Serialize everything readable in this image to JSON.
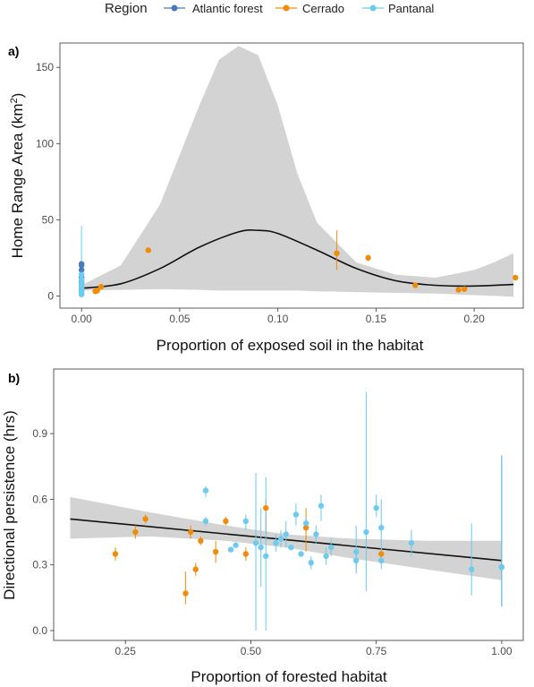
{
  "legend": {
    "title": "Region",
    "items": [
      {
        "label": "Atlantic forest",
        "color": "#4a7ab7"
      },
      {
        "label": "Cerrado",
        "color": "#f08c0a"
      },
      {
        "label": "Pantanal",
        "color": "#6ccbee"
      }
    ]
  },
  "chart_data": [
    {
      "panel": "a)",
      "type": "scatter",
      "xlabel": "Proportion of exposed soil in the habitat",
      "ylabel": "Home Range Area (km²)",
      "xlim": [
        -0.011,
        0.225
      ],
      "ylim": [
        -8,
        166
      ],
      "xticks": [
        0,
        0.05,
        0.1,
        0.15,
        0.2
      ],
      "xtick_labels": [
        "0.00",
        "0.05",
        "0.10",
        "0.15",
        "0.20"
      ],
      "yticks": [
        0,
        50,
        100,
        150
      ],
      "ytick_labels": [
        "0",
        "50",
        "100",
        "150"
      ],
      "grid": false,
      "fit_line": {
        "x": [
          0,
          0.02,
          0.04,
          0.06,
          0.08,
          0.09,
          0.1,
          0.12,
          0.14,
          0.16,
          0.18,
          0.2,
          0.22
        ],
        "y": [
          5,
          8,
          18,
          32,
          42,
          43,
          41,
          30,
          18,
          10,
          7,
          6.5,
          7.5
        ]
      },
      "ci_band": {
        "x": [
          0,
          0.02,
          0.04,
          0.06,
          0.07,
          0.08,
          0.09,
          0.1,
          0.11,
          0.12,
          0.14,
          0.16,
          0.18,
          0.2,
          0.21,
          0.22
        ],
        "upper": [
          7,
          20,
          60,
          125,
          155,
          164,
          158,
          125,
          80,
          48,
          22,
          14,
          12,
          17,
          22,
          28
        ],
        "lower": [
          3.5,
          4,
          4.5,
          4,
          3.5,
          3.5,
          3.5,
          3.5,
          3.5,
          3,
          2.5,
          2,
          1.5,
          0.5,
          0,
          -0.5
        ]
      },
      "series": [
        {
          "name": "Atlantic forest",
          "color": "#4a7ab7",
          "points": [
            {
              "x": 0,
              "y": 21
            },
            {
              "x": 0,
              "y": 20
            },
            {
              "x": 0,
              "y": 17
            },
            {
              "x": 0,
              "y": 12
            },
            {
              "x": 0,
              "y": 9
            }
          ]
        },
        {
          "name": "Cerrado",
          "color": "#f08c0a",
          "points": [
            {
              "x": 0,
              "y": 6
            },
            {
              "x": 0,
              "y": 5
            },
            {
              "x": 0,
              "y": 4
            },
            {
              "x": 0.007,
              "y": 3
            },
            {
              "x": 0.008,
              "y": 3.5
            },
            {
              "x": 0.01,
              "y": 6
            },
            {
              "x": 0.034,
              "y": 30
            },
            {
              "x": 0.13,
              "y": 28,
              "ylo": 17,
              "yhi": 43
            },
            {
              "x": 0.146,
              "y": 25,
              "ylo": 23,
              "yhi": 27
            },
            {
              "x": 0.17,
              "y": 7
            },
            {
              "x": 0.192,
              "y": 4
            },
            {
              "x": 0.195,
              "y": 4.5
            },
            {
              "x": 0.221,
              "y": 12
            }
          ]
        },
        {
          "name": "Pantanal",
          "color": "#6ccbee",
          "points": [
            {
              "x": 0,
              "y": 14,
              "ylo": 0,
              "yhi": 46
            },
            {
              "x": 0,
              "y": 11
            },
            {
              "x": 0,
              "y": 10
            },
            {
              "x": 0,
              "y": 8
            },
            {
              "x": 0,
              "y": 7
            },
            {
              "x": 0,
              "y": 6.5
            },
            {
              "x": 0,
              "y": 5.5
            },
            {
              "x": 0,
              "y": 4.5
            },
            {
              "x": 0,
              "y": 3
            },
            {
              "x": 0,
              "y": 2
            },
            {
              "x": 0,
              "y": 1
            }
          ]
        }
      ]
    },
    {
      "panel": "b)",
      "type": "scatter",
      "xlabel": "Proportion of forested habitat",
      "ylabel": "Directional persistence (hrs)",
      "xlim": [
        0.107,
        1.043
      ],
      "ylim": [
        -0.045,
        1.195
      ],
      "xticks": [
        0.25,
        0.5,
        0.75,
        1.0
      ],
      "xtick_labels": [
        "0.25",
        "0.50",
        "0.75",
        "1.00"
      ],
      "yticks": [
        0,
        0.3,
        0.6,
        0.9
      ],
      "ytick_labels": [
        "0.0",
        "0.3",
        "0.6",
        "0.9"
      ],
      "grid": false,
      "fit_line": {
        "x": [
          0.14,
          1.0
        ],
        "y": [
          0.51,
          0.32
        ]
      },
      "ci_band": {
        "x": [
          0.14,
          0.3,
          0.45,
          0.57,
          0.7,
          0.85,
          1.0
        ],
        "upper": [
          0.61,
          0.54,
          0.48,
          0.44,
          0.42,
          0.41,
          0.41
        ],
        "lower": [
          0.42,
          0.43,
          0.41,
          0.38,
          0.33,
          0.28,
          0.23
        ]
      },
      "series": [
        {
          "name": "Atlantic forest",
          "color": "#4a7ab7",
          "points": [
            {
              "x": 1.0,
              "y": 0.29,
              "ylo": 0.11,
              "yhi": 0.8
            }
          ]
        },
        {
          "name": "Cerrado",
          "color": "#f08c0a",
          "points": [
            {
              "x": 0.23,
              "y": 0.35,
              "ylo": 0.32,
              "yhi": 0.38
            },
            {
              "x": 0.27,
              "y": 0.45,
              "ylo": 0.42,
              "yhi": 0.48
            },
            {
              "x": 0.29,
              "y": 0.51,
              "ylo": 0.49,
              "yhi": 0.53
            },
            {
              "x": 0.37,
              "y": 0.17,
              "ylo": 0.12,
              "yhi": 0.27
            },
            {
              "x": 0.38,
              "y": 0.45,
              "ylo": 0.42,
              "yhi": 0.48
            },
            {
              "x": 0.39,
              "y": 0.28,
              "ylo": 0.25,
              "yhi": 0.31
            },
            {
              "x": 0.4,
              "y": 0.41,
              "ylo": 0.39,
              "yhi": 0.43
            },
            {
              "x": 0.43,
              "y": 0.36,
              "ylo": 0.31,
              "yhi": 0.41
            },
            {
              "x": 0.45,
              "y": 0.5,
              "ylo": 0.48,
              "yhi": 0.52
            },
            {
              "x": 0.49,
              "y": 0.35,
              "ylo": 0.32,
              "yhi": 0.38
            },
            {
              "x": 0.53,
              "y": 0.56,
              "ylo": 0.44,
              "yhi": 0.6
            },
            {
              "x": 0.61,
              "y": 0.47,
              "ylo": 0.36,
              "yhi": 0.56
            },
            {
              "x": 0.76,
              "y": 0.35,
              "ylo": 0.32,
              "yhi": 0.38
            }
          ]
        },
        {
          "name": "Pantanal",
          "color": "#6ccbee",
          "points": [
            {
              "x": 0.41,
              "y": 0.64,
              "ylo": 0.61,
              "yhi": 0.66
            },
            {
              "x": 0.41,
              "y": 0.5,
              "ylo": 0.48,
              "yhi": 0.52
            },
            {
              "x": 0.46,
              "y": 0.37
            },
            {
              "x": 0.47,
              "y": 0.39
            },
            {
              "x": 0.49,
              "y": 0.5,
              "ylo": 0.46,
              "yhi": 0.53
            },
            {
              "x": 0.51,
              "y": 0.4,
              "ylo": 0.0,
              "yhi": 0.72
            },
            {
              "x": 0.52,
              "y": 0.38,
              "ylo": 0.2,
              "yhi": 0.56
            },
            {
              "x": 0.53,
              "y": 0.34,
              "ylo": 0.0,
              "yhi": 0.7
            },
            {
              "x": 0.55,
              "y": 0.4,
              "ylo": 0.36,
              "yhi": 0.44
            },
            {
              "x": 0.56,
              "y": 0.42,
              "ylo": 0.38,
              "yhi": 0.46
            },
            {
              "x": 0.57,
              "y": 0.44,
              "ylo": 0.38,
              "yhi": 0.5
            },
            {
              "x": 0.58,
              "y": 0.38
            },
            {
              "x": 0.59,
              "y": 0.53,
              "ylo": 0.48,
              "yhi": 0.58
            },
            {
              "x": 0.6,
              "y": 0.35
            },
            {
              "x": 0.61,
              "y": 0.49,
              "ylo": 0.46,
              "yhi": 0.52
            },
            {
              "x": 0.62,
              "y": 0.31,
              "ylo": 0.28,
              "yhi": 0.34
            },
            {
              "x": 0.63,
              "y": 0.44,
              "ylo": 0.4,
              "yhi": 0.48
            },
            {
              "x": 0.64,
              "y": 0.57,
              "ylo": 0.5,
              "yhi": 0.62
            },
            {
              "x": 0.65,
              "y": 0.34,
              "ylo": 0.3,
              "yhi": 0.38
            },
            {
              "x": 0.66,
              "y": 0.38,
              "ylo": 0.34,
              "yhi": 0.42
            },
            {
              "x": 0.71,
              "y": 0.36,
              "ylo": 0.26,
              "yhi": 0.48
            },
            {
              "x": 0.71,
              "y": 0.32,
              "ylo": 0.28,
              "yhi": 0.36
            },
            {
              "x": 0.73,
              "y": 0.45,
              "ylo": 0.18,
              "yhi": 1.09
            },
            {
              "x": 0.75,
              "y": 0.56,
              "ylo": 0.52,
              "yhi": 0.62
            },
            {
              "x": 0.76,
              "y": 0.47,
              "ylo": 0.36,
              "yhi": 0.6
            },
            {
              "x": 0.76,
              "y": 0.32,
              "ylo": 0.28,
              "yhi": 0.36
            },
            {
              "x": 0.82,
              "y": 0.4,
              "ylo": 0.34,
              "yhi": 0.46
            },
            {
              "x": 0.94,
              "y": 0.28,
              "ylo": 0.16,
              "yhi": 0.49
            },
            {
              "x": 1.0,
              "y": 0.29,
              "ylo": 0.11,
              "yhi": 0.8
            }
          ]
        }
      ]
    }
  ]
}
